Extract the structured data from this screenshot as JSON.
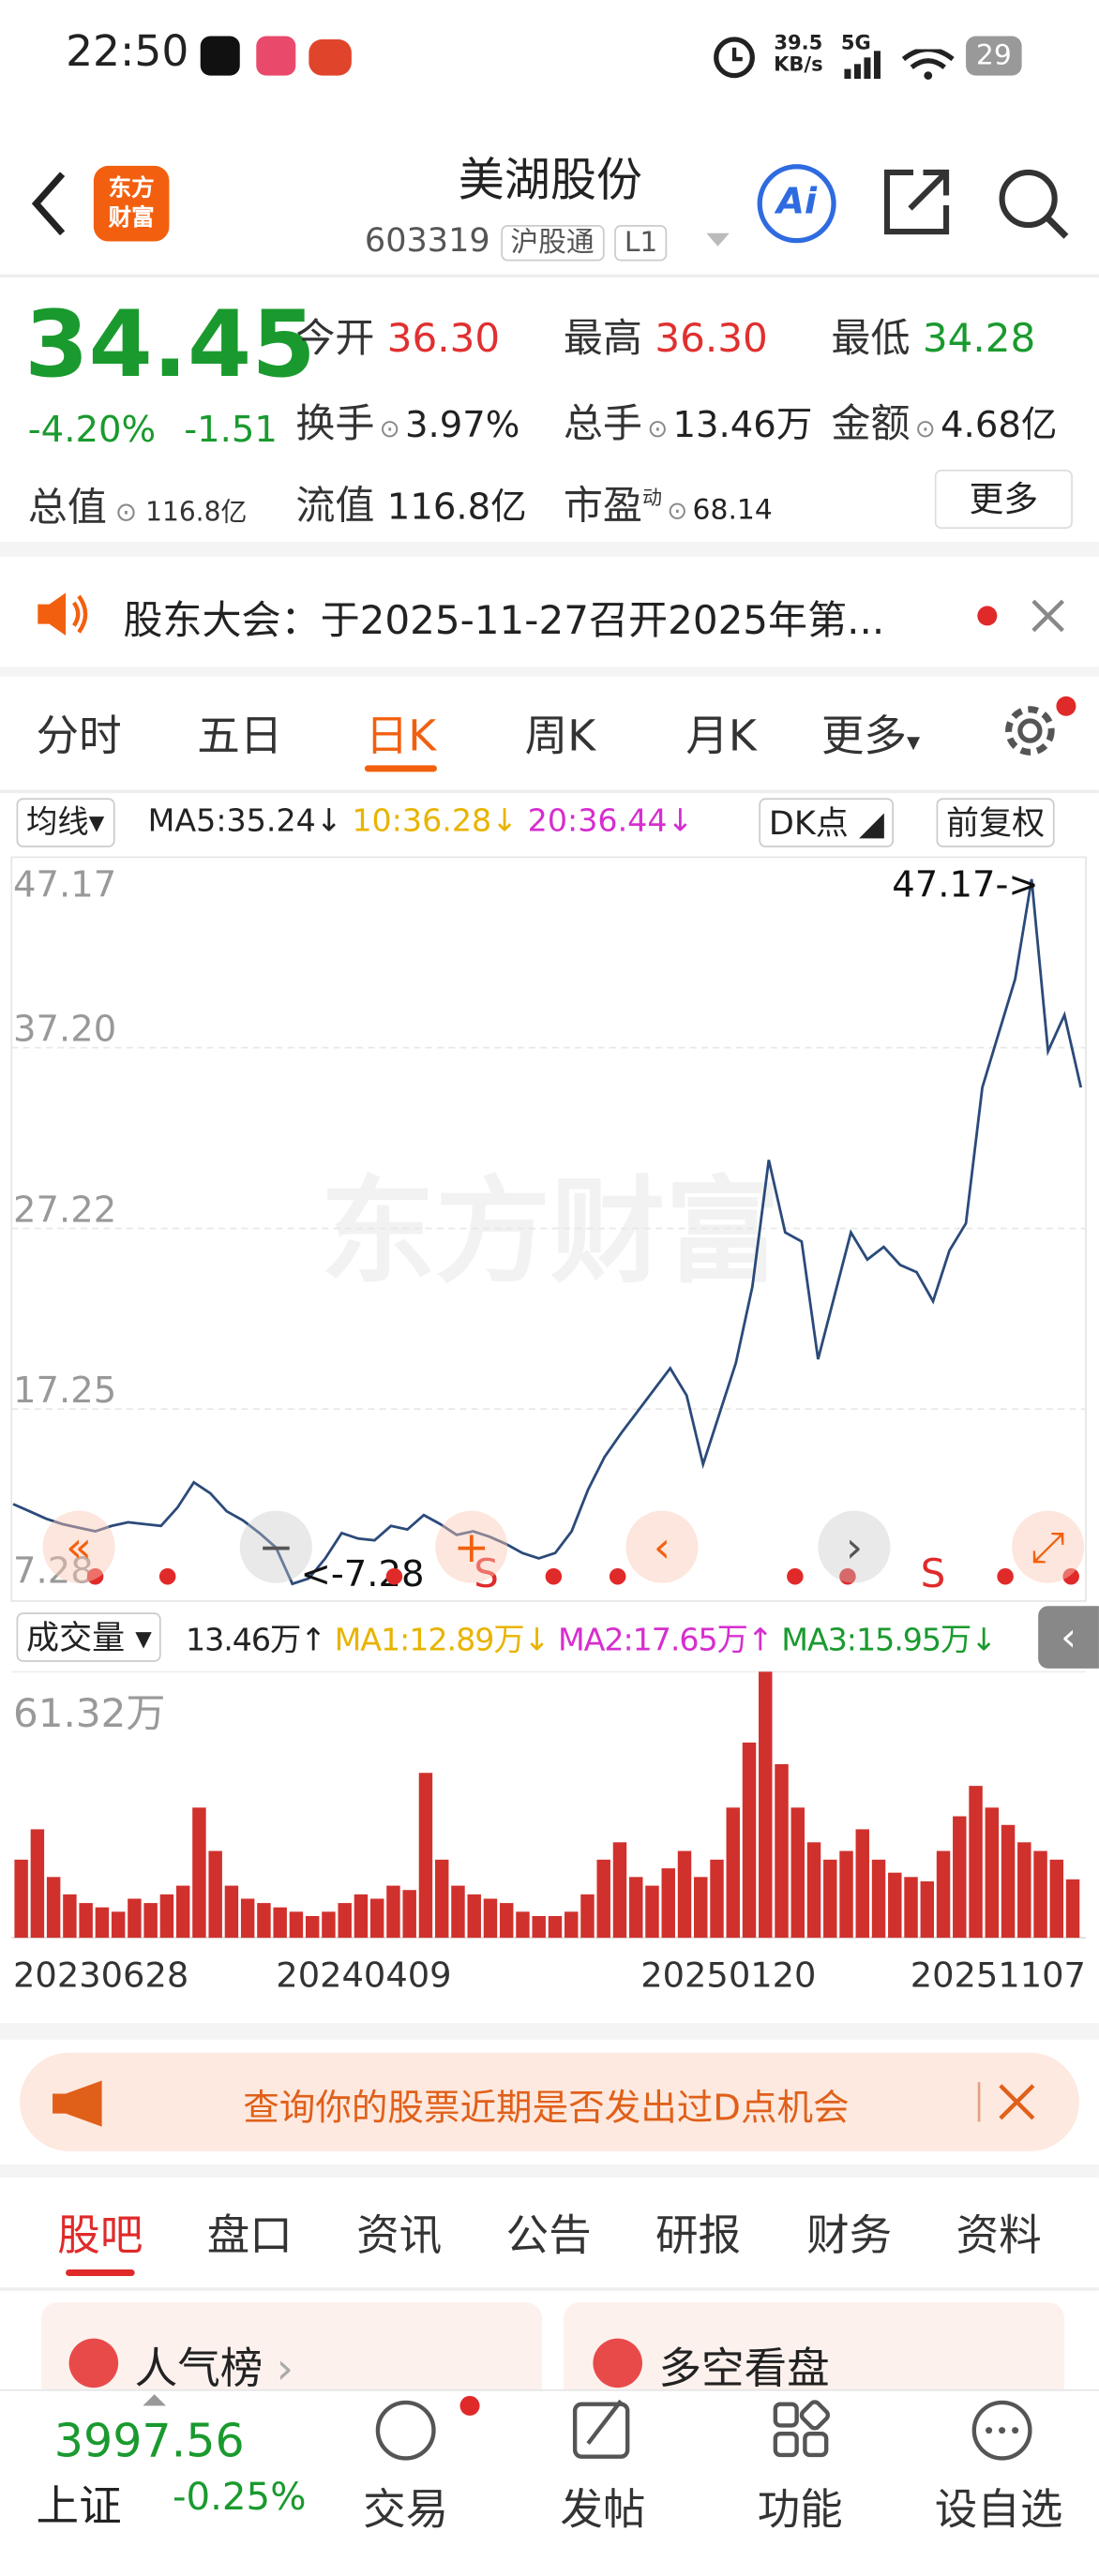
{
  "status_bar": {
    "time": "22:50",
    "net_speed": "39.5",
    "net_unit": "KB/s",
    "network": "5G",
    "battery": "29"
  },
  "header": {
    "logo": [
      "东方",
      "财富"
    ],
    "title": "美湖股份",
    "code": "603319",
    "badge": "沪股通",
    "level": "L1",
    "ai": "Ai"
  },
  "quote": {
    "price": "34.45",
    "change_pct": "-4.20%",
    "change": "-1.51",
    "total_value_label": "总值",
    "total_value": "116.8亿",
    "fields": [
      {
        "label": "今开",
        "value": "36.30"
      },
      {
        "label": "最高",
        "value": "36.30"
      },
      {
        "label": "最低",
        "value": "34.28"
      },
      {
        "label": "换手",
        "value": "3.97%"
      },
      {
        "label": "总手",
        "value": "13.46万"
      },
      {
        "label": "金额",
        "value": "4.68亿"
      },
      {
        "label": "流值",
        "value": "116.8亿"
      },
      {
        "label": "市盈",
        "sup": "动",
        "value": "68.14"
      }
    ],
    "more": "更多"
  },
  "notice": {
    "text": "股东大会：于2025-11-27召开2025年第..."
  },
  "period_tabs": [
    "分时",
    "五日",
    "日K",
    "周K",
    "月K",
    "更多"
  ],
  "ma_bar": {
    "label": "均线",
    "items": [
      "MA5:35.24↓",
      "10:36.28↓",
      "20:36.44↓"
    ],
    "dk": "DK点",
    "adjust": "前复权"
  },
  "price_chart": {
    "ylim": [
      7.28,
      47.17
    ],
    "yticks": [
      47.17,
      {
        "value": 37.2,
        "label": "37.20"
      },
      27.22,
      17.25,
      7.28
    ],
    "line_color": "#2b4a7a",
    "close": [
      12.0,
      11.6,
      11.2,
      10.9,
      10.7,
      10.5,
      10.8,
      11.0,
      10.9,
      10.8,
      11.8,
      13.2,
      12.6,
      11.6,
      11.1,
      10.4,
      9.6,
      7.6,
      7.9,
      9.0,
      10.4,
      10.1,
      10.0,
      10.8,
      10.6,
      11.4,
      10.9,
      10.3,
      10.5,
      10.2,
      9.8,
      9.3,
      9.0,
      9.3,
      10.5,
      12.8,
      14.6,
      15.9,
      17.1,
      18.3,
      19.5,
      18.0,
      14.2,
      17.0,
      19.8,
      24.0,
      31.0,
      27.0,
      26.5,
      20.0,
      23.5,
      27.0,
      25.5,
      26.2,
      25.2,
      24.8,
      23.2,
      26.0,
      27.5,
      35.0,
      38.0,
      41.0,
      46.5,
      37.0,
      39.0,
      35.0
    ],
    "high_label": "47.17->",
    "low_label": "<-7.28",
    "watermark": "东方财富",
    "signal": "S"
  },
  "volume_bar": {
    "label": "成交量",
    "items": [
      "13.46万↑",
      "MA1:12.89万↓",
      "MA2:17.65万↑",
      "MA3:15.95万↓"
    ]
  },
  "volume_chart": {
    "ylim": [
      0,
      61.32
    ],
    "yticks": [
      {
        "value": 61.32,
        "label": "61.32万"
      }
    ],
    "color": "#d0312d",
    "values": [
      18,
      25,
      14,
      10,
      8,
      7,
      6,
      9,
      8,
      10,
      12,
      30,
      20,
      12,
      9,
      8,
      7,
      6,
      5,
      6,
      8,
      10,
      9,
      12,
      11,
      38,
      18,
      12,
      10,
      9,
      8,
      6,
      5,
      5,
      6,
      10,
      18,
      22,
      14,
      12,
      16,
      20,
      14,
      18,
      30,
      45,
      61.32,
      40,
      30,
      22,
      18,
      20,
      25,
      18,
      15,
      14,
      13,
      20,
      28,
      35,
      30,
      26,
      22,
      20,
      18,
      13.46
    ]
  },
  "dates": [
    "20230628",
    "20240409",
    "20250120",
    "20251107"
  ],
  "banner": {
    "text": "查询你的股票近期是否发出过D点机会"
  },
  "content_tabs": [
    "股吧",
    "盘口",
    "资讯",
    "公告",
    "研报",
    "财务",
    "资料"
  ],
  "cards": [
    "人气榜",
    "多空看盘"
  ],
  "bottom_nav": {
    "index_value": "3997.56",
    "index_name": "上证",
    "index_change": "-0.25%",
    "items": [
      "交易",
      "发帖",
      "功能",
      "设自选"
    ]
  }
}
